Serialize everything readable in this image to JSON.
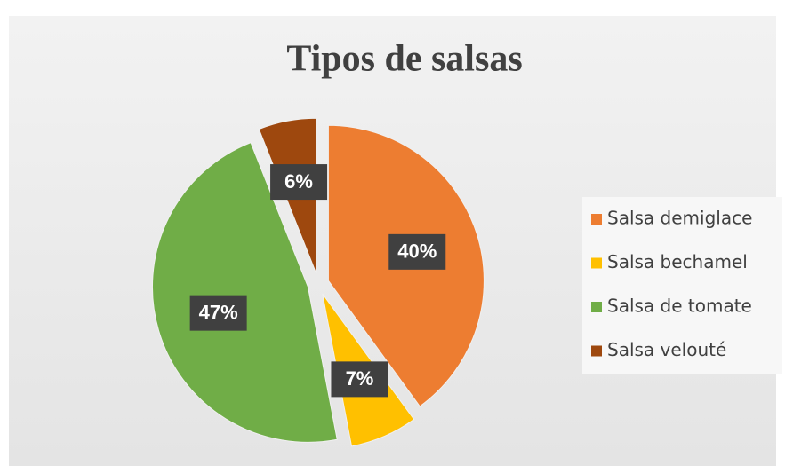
{
  "chart_data": {
    "type": "pie",
    "title": "Tipos de salsas",
    "categories": [
      "Salsa demiglace",
      "Salsa bechamel",
      "Salsa de tomate",
      "Salsa velouté"
    ],
    "values": [
      40,
      7,
      47,
      6
    ],
    "value_labels": [
      "40%",
      "7%",
      "47%",
      "6%"
    ],
    "colors": [
      "#ed7d31",
      "#ffc000",
      "#70ad47",
      "#9e480e"
    ],
    "legend": "right"
  }
}
